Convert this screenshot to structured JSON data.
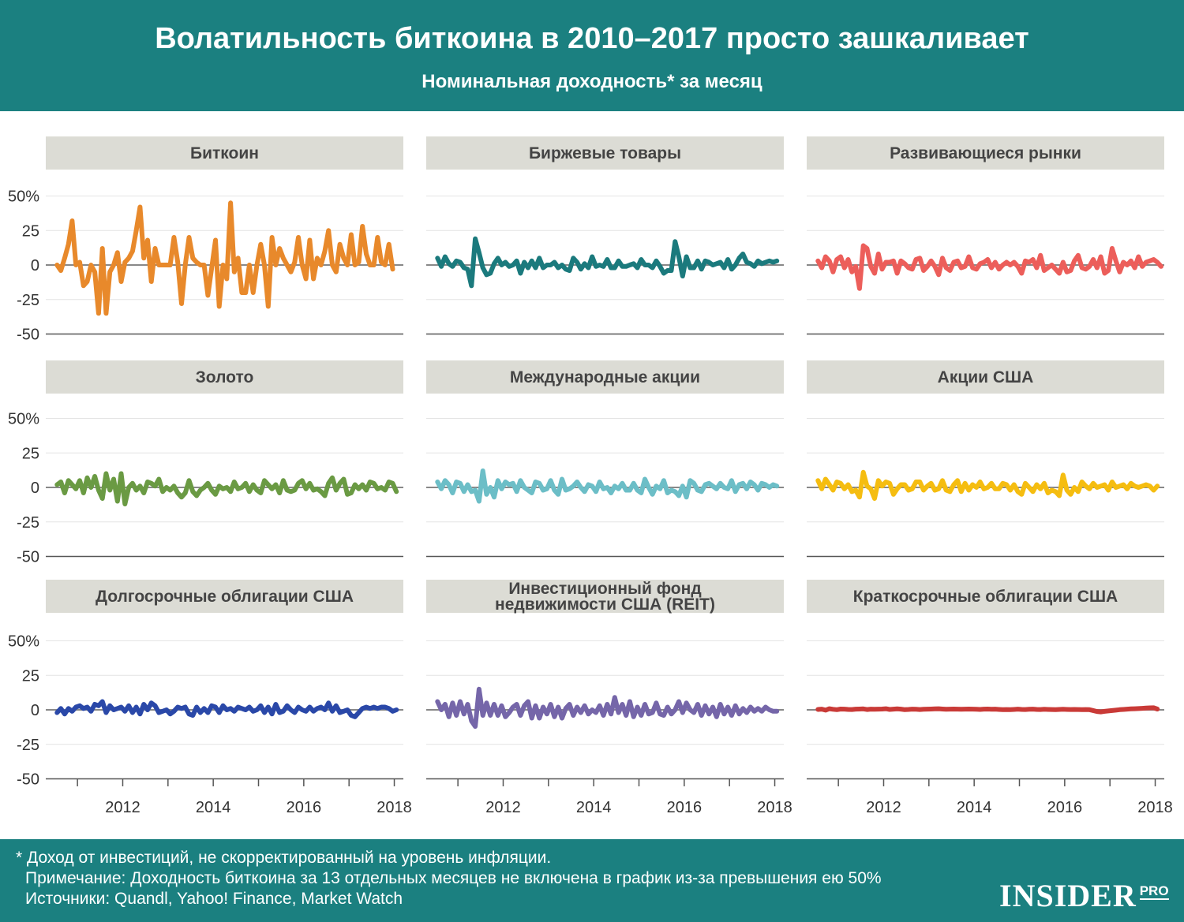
{
  "header": {
    "title": "Волатильность биткоина в 2010–2017 просто зашкаливает",
    "subtitle": "Номинальная доходность* за месяц"
  },
  "footer": {
    "note1": "* Доход от инвестиций, не скорректированный на уровень инфляции.",
    "note2": "Примечание: Доходность биткоина за 13 отдельных месяцев не включена в график из-за превышения ею 50%",
    "note3": "Источники: Quandl, Yahoo! Finance, Market Watch",
    "brand": "INSIDER",
    "brand_sub": "PRO"
  },
  "chart_data": {
    "type": "line",
    "layout": "small-multiples 3x3",
    "yticks": [
      50,
      25,
      0,
      -25,
      -50
    ],
    "ytick_labels": [
      "50%",
      "25",
      "0",
      "-25",
      "-50"
    ],
    "ylim": [
      -50,
      50
    ],
    "xlim": [
      2010.3,
      2018.2
    ],
    "xticks": [
      2012,
      2014,
      2016,
      2018
    ],
    "xtick_labels": [
      "2012",
      "2014",
      "2016",
      "2018"
    ],
    "panels": [
      {
        "title": "Биткоин",
        "color": "#e8892b",
        "x_start": 2010.55,
        "x_step": 0.0833,
        "values": [
          0,
          -4,
          5,
          15,
          32,
          0,
          2,
          -15,
          -12,
          0,
          -5,
          -35,
          12,
          -35,
          -5,
          0,
          9,
          -12,
          2,
          5,
          10,
          25,
          42,
          5,
          18,
          -12,
          12,
          0,
          0,
          0,
          0,
          20,
          2,
          -28,
          0,
          20,
          5,
          2,
          0,
          0,
          -22,
          -2,
          18,
          -30,
          0,
          -10,
          45,
          -5,
          5,
          -20,
          -20,
          0,
          -20,
          0,
          15,
          0,
          -30,
          20,
          0,
          12,
          5,
          0,
          -5,
          2,
          20,
          0,
          -10,
          18,
          -10,
          5,
          0,
          10,
          25,
          0,
          -5,
          15,
          5,
          0,
          22,
          0,
          2,
          28,
          8,
          0,
          0,
          20,
          2,
          0,
          15,
          -3
        ]
      },
      {
        "title": "Биржевые товары",
        "color": "#1b7a7d",
        "x_start": 2010.55,
        "x_step": 0.0833,
        "values": [
          5,
          -1,
          6,
          1,
          -1,
          3,
          2,
          -2,
          -3,
          -15,
          19,
          9,
          -2,
          -7,
          -6,
          1,
          5,
          0,
          2,
          -1,
          0,
          3,
          -6,
          2,
          -2,
          3,
          -2,
          5,
          -2,
          0,
          0,
          2,
          -2,
          0,
          -3,
          -4,
          5,
          2,
          -3,
          1,
          -2,
          6,
          -1,
          0,
          -1,
          4,
          -2,
          -2,
          3,
          -1,
          -1,
          0,
          1,
          -2,
          4,
          0,
          0,
          -2,
          3,
          -1,
          -6,
          -4,
          -4,
          17,
          6,
          -8,
          6,
          -2,
          -2,
          3,
          -3,
          3,
          2,
          0,
          1,
          2,
          -2,
          4,
          -3,
          0,
          5,
          8,
          2,
          1,
          -1,
          3,
          1,
          2,
          3,
          2,
          3
        ]
      },
      {
        "title": "Развивающиеся рынки",
        "color": "#ec5e5a",
        "x_start": 2010.55,
        "x_step": 0.0833,
        "values": [
          3,
          -2,
          6,
          3,
          -5,
          4,
          6,
          -2,
          4,
          -5,
          -1,
          -17,
          14,
          12,
          -1,
          -6,
          8,
          -3,
          2,
          2,
          3,
          -6,
          3,
          1,
          -2,
          -3,
          4,
          5,
          -4,
          -1,
          3,
          -1,
          -7,
          5,
          -2,
          -4,
          2,
          3,
          -2,
          -1,
          6,
          -2,
          -3,
          1,
          2,
          4,
          -2,
          2,
          -3,
          0,
          2,
          0,
          2,
          -1,
          -6,
          3,
          2,
          4,
          -2,
          7,
          -4,
          -2,
          0,
          -3,
          -6,
          2,
          -5,
          -4,
          3,
          7,
          -2,
          -3,
          -1,
          4,
          -2,
          6,
          -6,
          -4,
          12,
          3,
          -5,
          2,
          0,
          3,
          -2,
          6,
          -1,
          2,
          3,
          4,
          2,
          -1
        ]
      },
      {
        "title": "Золото",
        "color": "#6a9a43",
        "x_start": 2010.55,
        "x_step": 0.0833,
        "values": [
          2,
          4,
          -4,
          5,
          2,
          -1,
          5,
          -4,
          7,
          0,
          8,
          -2,
          -8,
          10,
          -2,
          6,
          -10,
          10,
          -12,
          0,
          3,
          -2,
          1,
          -4,
          4,
          3,
          1,
          6,
          -3,
          0,
          -2,
          1,
          -4,
          -7,
          -4,
          5,
          -3,
          -6,
          -2,
          0,
          3,
          -2,
          -5,
          1,
          -1,
          0,
          -3,
          4,
          -1,
          0,
          3,
          -3,
          2,
          -2,
          -4,
          5,
          2,
          -1,
          2,
          -4,
          5,
          -2,
          -3,
          -2,
          3,
          5,
          -1,
          3,
          -2,
          -1,
          -3,
          -6,
          3,
          7,
          -2,
          3,
          6,
          -5,
          -4,
          2,
          -1,
          2,
          -2,
          4,
          3,
          -1,
          0,
          -2,
          4,
          3,
          -3
        ]
      },
      {
        "title": "Международные акции",
        "color": "#6cbec7",
        "x_start": 2010.55,
        "x_step": 0.0833,
        "values": [
          4,
          -1,
          5,
          2,
          -4,
          4,
          3,
          -3,
          2,
          -3,
          -2,
          -10,
          12,
          -5,
          0,
          -7,
          5,
          -1,
          4,
          2,
          3,
          -3,
          5,
          0,
          -2,
          -4,
          4,
          3,
          -2,
          -1,
          5,
          -2,
          -5,
          6,
          -2,
          -1,
          1,
          4,
          0,
          -3,
          2,
          1,
          -3,
          4,
          -1,
          0,
          -4,
          1,
          -1,
          3,
          -2,
          -2,
          3,
          -2,
          -4,
          6,
          0,
          -5,
          1,
          -1,
          5,
          -4,
          -2,
          -3,
          -6,
          1,
          -7,
          5,
          3,
          -2,
          -3,
          2,
          3,
          1,
          -1,
          3,
          0,
          -1,
          5,
          -3,
          2,
          3,
          -1,
          4,
          2,
          -2,
          3,
          2,
          0,
          2,
          1
        ]
      },
      {
        "title": "Акции США",
        "color": "#f5bd10",
        "x_start": 2010.55,
        "x_step": 0.0833,
        "values": [
          5,
          -1,
          6,
          2,
          -2,
          4,
          3,
          -1,
          2,
          -3,
          -2,
          -7,
          11,
          1,
          -1,
          -8,
          5,
          1,
          4,
          3,
          -5,
          -1,
          2,
          2,
          -2,
          -1,
          4,
          4,
          -2,
          1,
          3,
          -2,
          -1,
          5,
          -2,
          -3,
          2,
          5,
          -3,
          3,
          -2,
          2,
          0,
          4,
          -1,
          0,
          3,
          -1,
          -1,
          3,
          2,
          -2,
          2,
          -3,
          -5,
          3,
          0,
          -3,
          2,
          -1,
          3,
          -4,
          -2,
          -3,
          -6,
          9,
          -2,
          -5,
          0,
          -3,
          4,
          1,
          -1,
          3,
          0,
          1,
          2,
          -2,
          4,
          0,
          1,
          2,
          -1,
          3,
          1,
          0,
          1,
          2,
          1,
          -2,
          1
        ]
      },
      {
        "title": "Долгосрочные облигации США",
        "color": "#2a48a8",
        "x_start": 2010.55,
        "x_step": 0.0833,
        "values": [
          -2,
          1,
          -3,
          1,
          -1,
          2,
          3,
          1,
          2,
          -1,
          4,
          3,
          6,
          -2,
          3,
          0,
          1,
          2,
          -1,
          3,
          -2,
          2,
          -3,
          4,
          0,
          5,
          3,
          -2,
          -1,
          0,
          -3,
          -1,
          2,
          1,
          2,
          -3,
          -4,
          2,
          -2,
          1,
          -2,
          3,
          2,
          -2,
          3,
          0,
          1,
          -1,
          2,
          1,
          0,
          2,
          -1,
          0,
          3,
          -2,
          2,
          -3,
          4,
          -2,
          -1,
          3,
          0,
          -2,
          2,
          0,
          -1,
          2,
          -1,
          1,
          2,
          0,
          5,
          -1,
          3,
          -2,
          -1,
          0,
          -4,
          -5,
          -2,
          1,
          2,
          1,
          2,
          1,
          2,
          2,
          1,
          -1,
          0
        ]
      },
      {
        "title": "Инвестиционный фонд недвижимости США (REIT)",
        "color": "#7566a9",
        "x_start": 2010.55,
        "x_step": 0.0833,
        "values": [
          6,
          0,
          4,
          -5,
          5,
          -4,
          6,
          -3,
          4,
          -8,
          -12,
          15,
          -4,
          5,
          -4,
          4,
          -4,
          3,
          -5,
          -2,
          2,
          4,
          -4,
          3,
          6,
          -6,
          3,
          -6,
          2,
          -3,
          4,
          -5,
          2,
          -6,
          1,
          4,
          -4,
          2,
          -2,
          3,
          -3,
          0,
          -2,
          3,
          -4,
          4,
          -3,
          9,
          -2,
          4,
          -4,
          6,
          -5,
          2,
          -4,
          4,
          -3,
          -2,
          5,
          -3,
          -4,
          2,
          -3,
          0,
          6,
          -2,
          5,
          0,
          -2,
          4,
          -4,
          3,
          -3,
          2,
          -5,
          4,
          -3,
          2,
          -4,
          3,
          -3,
          1,
          -2,
          2,
          -1,
          1,
          -1,
          2,
          0,
          -1,
          -1
        ]
      },
      {
        "title": "Краткосрочные облигации США",
        "color": "#c93a37",
        "x_start": 2010.55,
        "x_step": 0.0833,
        "values": [
          0.3,
          0.5,
          -0.2,
          0.8,
          0.4,
          0.1,
          0.6,
          0.5,
          0.3,
          0.2,
          0.5,
          0.6,
          0.7,
          0.2,
          0.5,
          0.4,
          0.5,
          0.6,
          0.8,
          0.3,
          0.5,
          0.7,
          0.5,
          0.1,
          0.3,
          0.5,
          0.4,
          0.2,
          0.4,
          0.5,
          0.6,
          0.7,
          0.8,
          0.6,
          0.4,
          0.5,
          0.6,
          0.5,
          0.4,
          0.5,
          0.6,
          0.5,
          0.4,
          0.3,
          0.5,
          0.6,
          0.4,
          0.5,
          0.3,
          0.1,
          0.2,
          0.1,
          0.3,
          0.5,
          0.3,
          0.2,
          0.4,
          0.5,
          0.3,
          0.2,
          0.4,
          0.3,
          0.2,
          0.1,
          0.3,
          0.4,
          0.3,
          0.2,
          0.3,
          0.2,
          0.1,
          0.2,
          0.1,
          -0.5,
          -1.2,
          -1.5,
          -1.1,
          -0.8,
          -0.5,
          -0.2,
          0.1,
          0.3,
          0.5,
          0.7,
          0.8,
          0.9,
          1.1,
          1.3,
          1.4,
          1.5,
          0.6
        ]
      }
    ]
  }
}
